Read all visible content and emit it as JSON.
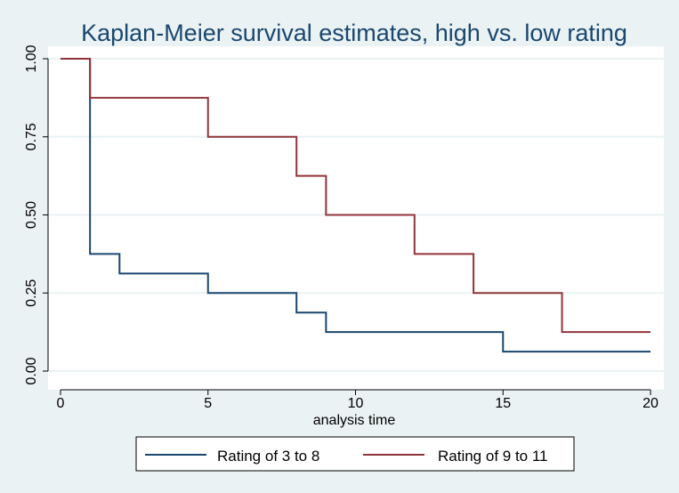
{
  "chart_data": {
    "type": "line",
    "step": true,
    "title": "Kaplan-Meier survival estimates, high vs. low rating",
    "xlabel": "analysis time",
    "ylabel": "",
    "xlim": [
      0,
      20
    ],
    "ylim": [
      0,
      1
    ],
    "x_ticks": [
      0,
      5,
      10,
      15,
      20
    ],
    "x_tick_labels": [
      "0",
      "5",
      "10",
      "15",
      "20"
    ],
    "y_ticks": [
      0,
      0.25,
      0.5,
      0.75,
      1
    ],
    "y_tick_labels": [
      "0.00",
      "0.25",
      "0.50",
      "0.75",
      "1.00"
    ],
    "grid": true,
    "legend_position": "bottom",
    "colors": {
      "background": "#eaf2f3",
      "plot_area": "#ffffff",
      "grid": "#eaf2f3",
      "title": "#1a476f"
    },
    "series": [
      {
        "name": "Rating of 3 to 8",
        "color": "#1a476f",
        "x": [
          0,
          1,
          2,
          5,
          8,
          9,
          15,
          20
        ],
        "y": [
          1.0,
          0.375,
          0.3125,
          0.25,
          0.1875,
          0.125,
          0.0625,
          0.0625
        ]
      },
      {
        "name": "Rating of 9 to 11",
        "color": "#90353b",
        "x": [
          0,
          1,
          5,
          8,
          9,
          12,
          14,
          17,
          20
        ],
        "y": [
          1.0,
          0.875,
          0.75,
          0.625,
          0.5,
          0.375,
          0.25,
          0.125,
          0.125
        ]
      }
    ]
  }
}
